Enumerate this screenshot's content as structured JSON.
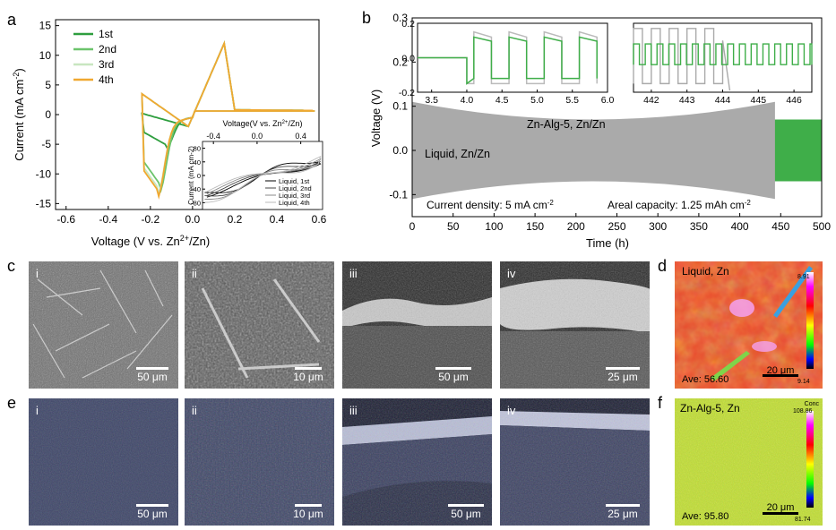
{
  "panel_letters": {
    "a": "a",
    "b": "b",
    "c": "c",
    "d": "d",
    "e": "e",
    "f": "f"
  },
  "chart_data": [
    {
      "type": "line",
      "panel": "a",
      "xlabel_main": "Voltage (V vs. Zn",
      "xlabel_sup": "2+",
      "xlabel_tail": "/Zn)",
      "ylabel_main": "Current (mA cm",
      "ylabel_sup": "-2",
      "ylabel_tail": ")",
      "xlim": [
        -0.65,
        0.6
      ],
      "ylim": [
        -16,
        16
      ],
      "xticks": [
        -0.6,
        -0.4,
        -0.2,
        0.0,
        0.2,
        0.4,
        0.6
      ],
      "xtick_labels": [
        "-0.6",
        "-0.4",
        "-0.2",
        "0.0",
        "0.2",
        "0.4",
        "0.6"
      ],
      "yticks": [
        -15,
        -10,
        -5,
        0,
        5,
        10,
        15
      ],
      "ytick_labels": [
        "-15",
        "-10",
        "-5",
        "0",
        "5",
        "10",
        "15"
      ],
      "legend_position": "top-left",
      "series": [
        {
          "name": "1st",
          "color": "#2e9e3e"
        },
        {
          "name": "2nd",
          "color": "#6cc46c"
        },
        {
          "name": "3rd",
          "color": "#c8e6c0"
        },
        {
          "name": "4th",
          "color": "#f0a830"
        }
      ],
      "peaks": {
        "cathodic_1st": {
          "x": -0.13,
          "y": -5
        },
        "cathodic_4th": {
          "x": -0.17,
          "y": -12.5
        },
        "anodic_4th": {
          "x": 0.15,
          "y": 12
        }
      },
      "inset": {
        "xlabel_main": "Voltage(V vs. Zn",
        "xlabel_sup": "2+",
        "xlabel_tail": "/Zn)",
        "ylabel": "Current (mA cm-2)",
        "xlim": [
          -0.5,
          0.6
        ],
        "ylim": [
          -100,
          100
        ],
        "xticks": [
          -0.4,
          0.0,
          0.4
        ],
        "xtick_labels": [
          "-0.4",
          "0.0",
          "0.4"
        ],
        "yticks": [
          -80,
          -40,
          0,
          40,
          80
        ],
        "ytick_labels": [
          "-80",
          "-40",
          "0",
          "40",
          "80"
        ],
        "legend_position": "right",
        "series": [
          {
            "name": "Liquid, 1st",
            "color": "#000000"
          },
          {
            "name": "Liquid, 2nd",
            "color": "#444444"
          },
          {
            "name": "Liquid, 3rd",
            "color": "#888888"
          },
          {
            "name": "Liquid, 4th",
            "color": "#bbbbbb"
          }
        ]
      }
    },
    {
      "type": "line",
      "panel": "b",
      "xlabel": "Time (h)",
      "ylabel": "Voltage (V)",
      "xlim": [
        0,
        500
      ],
      "ylim": [
        -0.15,
        0.3
      ],
      "xticks": [
        0,
        50,
        100,
        150,
        200,
        250,
        300,
        350,
        400,
        450,
        500
      ],
      "xtick_labels": [
        "0",
        "50",
        "100",
        "150",
        "200",
        "250",
        "300",
        "350",
        "400",
        "450",
        "500"
      ],
      "yticks": [
        -0.1,
        0.0,
        0.1,
        0.2,
        0.3
      ],
      "ytick_labels": [
        "-0.1",
        "0.0",
        "0.1",
        "0.2",
        "0.3"
      ],
      "series": [
        {
          "name": "Zn-Alg-5, Zn/Zn",
          "color": "#3fae49",
          "amplitude": 0.07,
          "end_time": 500
        },
        {
          "name": "Liquid, Zn/Zn",
          "color": "#aaaaaa",
          "end_time": 443
        }
      ],
      "annotations": {
        "zn_alg": "Zn-Alg-5, Zn/Zn",
        "liquid": "Liquid, Zn/Zn",
        "current_density_main": "Current density: 5 mA cm",
        "current_density_sup": "-2",
        "areal_main": "Areal capacity: 1.25 mAh cm",
        "areal_sup": "-2"
      },
      "inset1": {
        "xlim": [
          3.3,
          6.0
        ],
        "ylim": [
          -0.2,
          0.2
        ],
        "xticks": [
          3.5,
          4.0,
          4.5,
          5.0,
          5.5,
          6.0
        ],
        "xtick_labels": [
          "3.5",
          "4.0",
          "4.5",
          "5.0",
          "5.5",
          "6.0"
        ],
        "yticks": [
          -0.2,
          0.0,
          0.2
        ],
        "ytick_labels": [
          "-0.2",
          "0.0",
          "0.2"
        ]
      },
      "inset2": {
        "xlim": [
          441.5,
          446.5
        ],
        "ylim": [
          -0.2,
          0.2
        ],
        "xticks": [
          442,
          443,
          444,
          445,
          446
        ],
        "xtick_labels": [
          "442",
          "443",
          "444",
          "445",
          "446"
        ]
      }
    }
  ],
  "sem_c": [
    {
      "roman": "i",
      "scale": "50 μm"
    },
    {
      "roman": "ii",
      "scale": "10 μm"
    },
    {
      "roman": "iii",
      "scale": "50 μm"
    },
    {
      "roman": "iv",
      "scale": "25 μm"
    }
  ],
  "sem_e": [
    {
      "roman": "i",
      "scale": "50 μm"
    },
    {
      "roman": "ii",
      "scale": "10 μm"
    },
    {
      "roman": "iii",
      "scale": "50 μm"
    },
    {
      "roman": "iv",
      "scale": "25 μm"
    }
  ],
  "map_d": {
    "label": "Liquid, Zn",
    "ave": "Ave: 56.60",
    "scale": "20 μm",
    "cb_top": "8.91",
    "cb_bottom": "9.14"
  },
  "map_f": {
    "label": "Zn-Alg-5, Zn",
    "ave": "Ave: 95.80",
    "scale": "20 μm",
    "cb_title": "Conc",
    "cb_top": "108.86",
    "cb_bottom": "81.74"
  }
}
